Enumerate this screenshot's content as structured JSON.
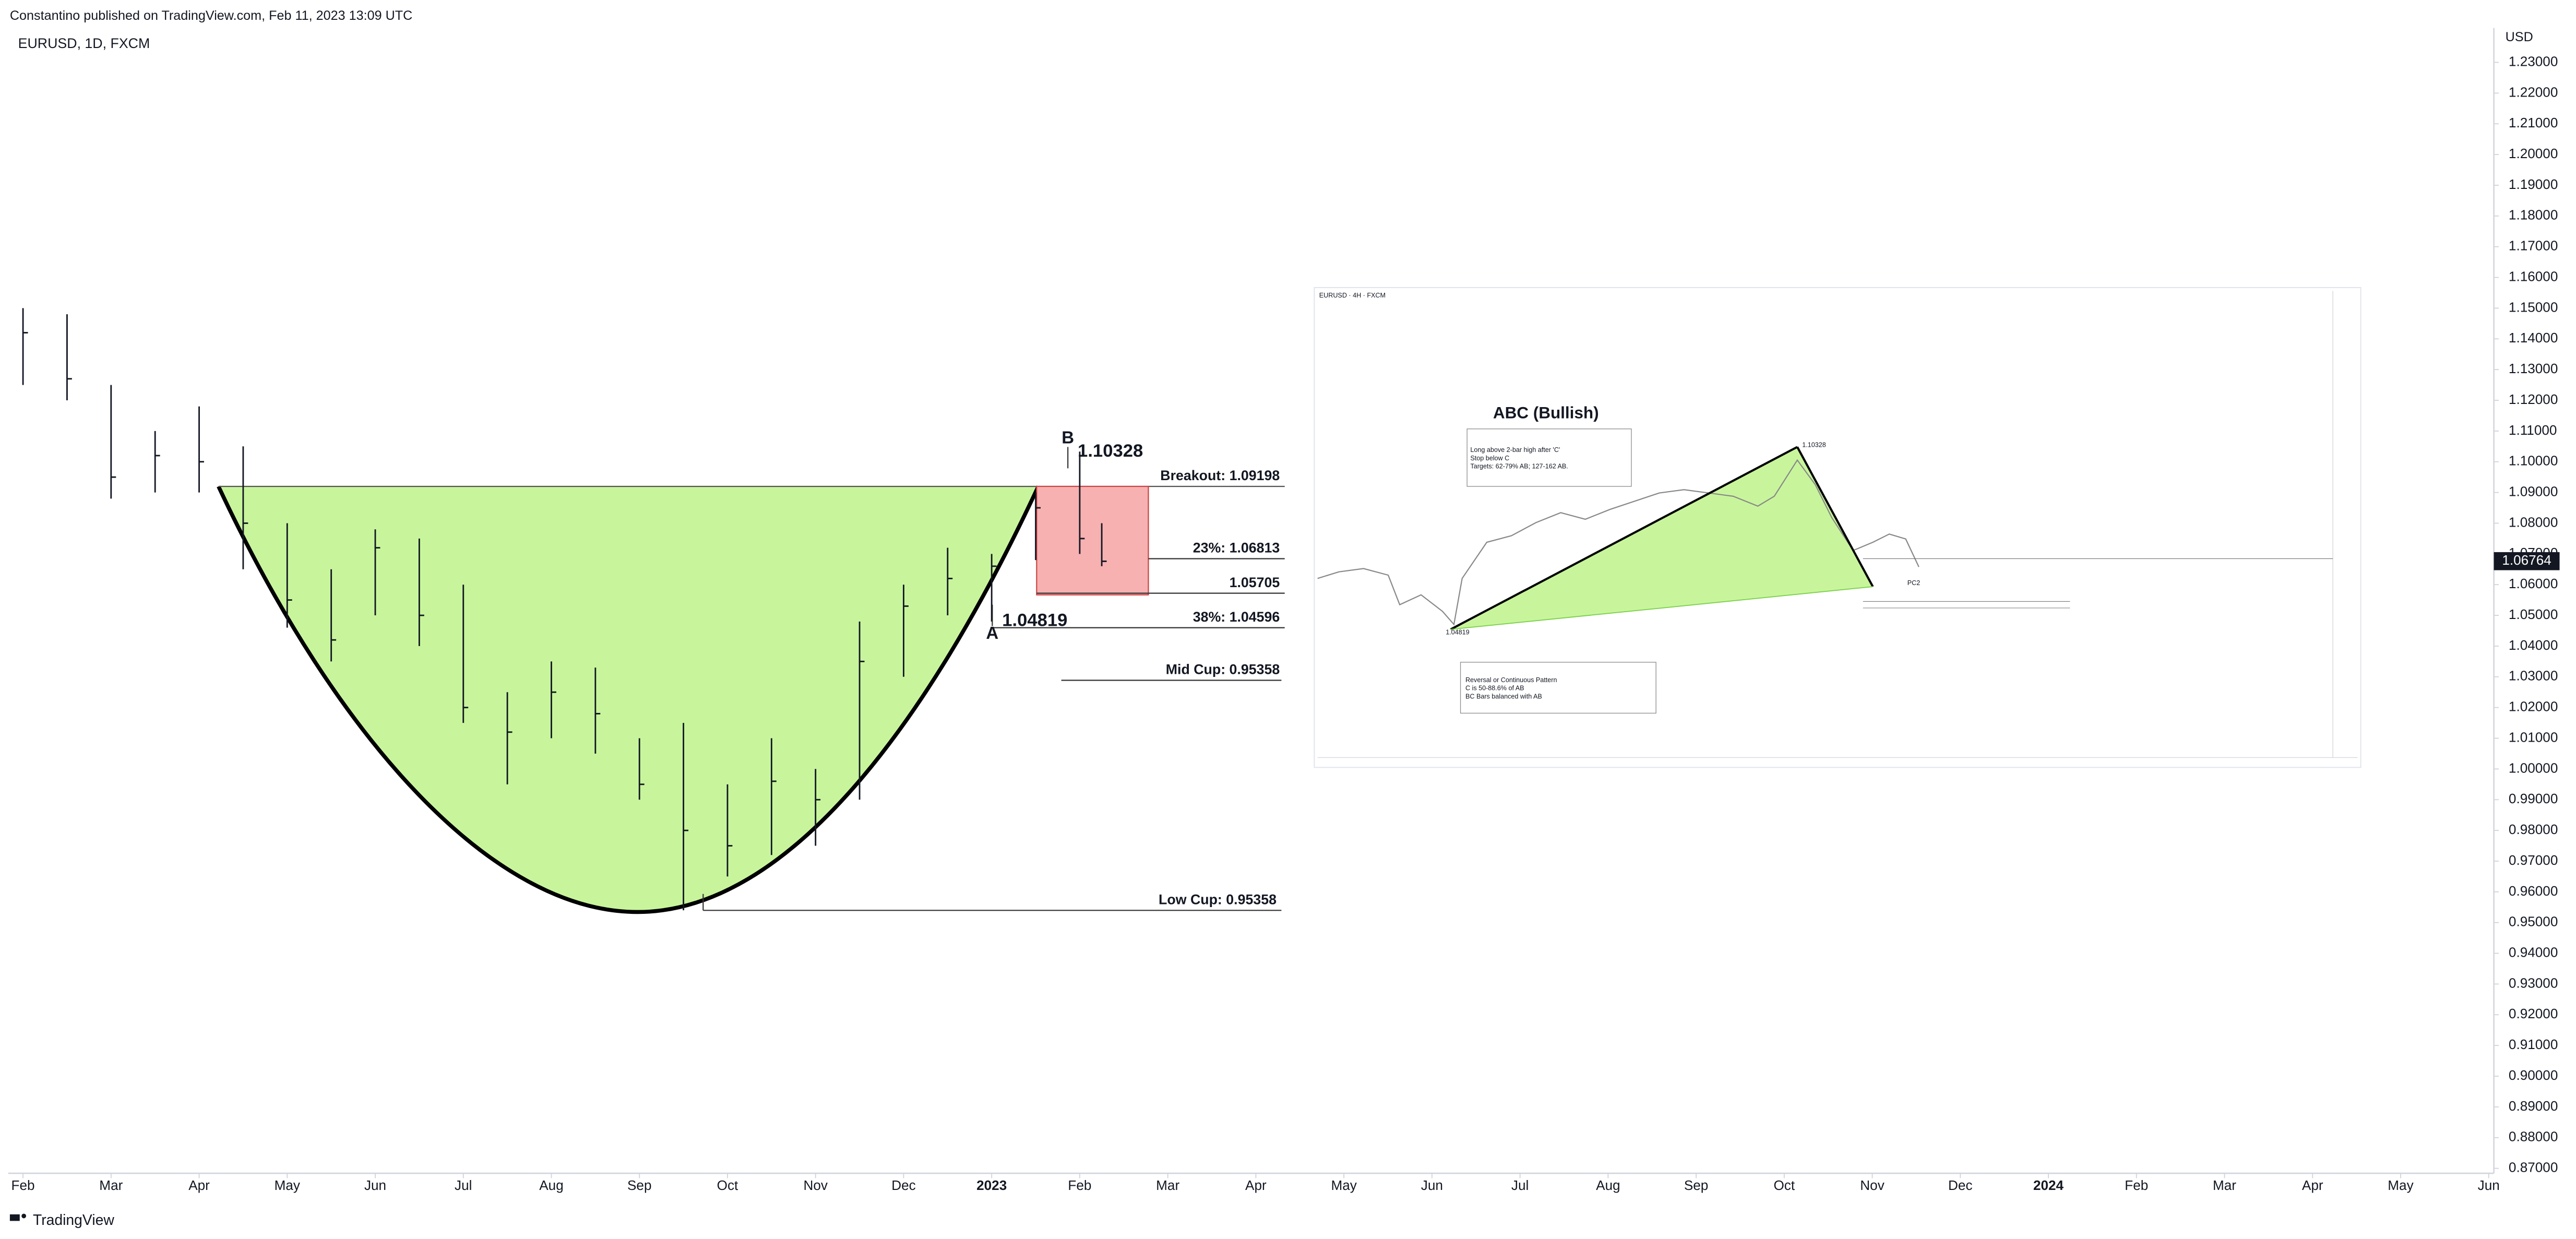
{
  "header": {
    "published": "Constantino published on TradingView.com, Feb 11, 2023 13:09 UTC",
    "footer": "TradingView"
  },
  "chart_data": {
    "type": "ohlc",
    "title": "EURUSD, 1D, FXCM",
    "y_axis_label": "USD",
    "xlim": [
      -0.168,
      28.04
    ],
    "xticks": [
      {
        "value": 0,
        "label": "Feb"
      },
      {
        "value": 1,
        "label": "Mar"
      },
      {
        "value": 2,
        "label": "Apr"
      },
      {
        "value": 3,
        "label": "May"
      },
      {
        "value": 4,
        "label": "Jun"
      },
      {
        "value": 5,
        "label": "Jul"
      },
      {
        "value": 6,
        "label": "Aug"
      },
      {
        "value": 7,
        "label": "Sep"
      },
      {
        "value": 8,
        "label": "Oct"
      },
      {
        "value": 9,
        "label": "Nov"
      },
      {
        "value": 10,
        "label": "Dec"
      },
      {
        "value": 11,
        "label": "2023"
      },
      {
        "value": 12,
        "label": "Feb"
      },
      {
        "value": 13,
        "label": "Mar"
      },
      {
        "value": 14,
        "label": "Apr"
      },
      {
        "value": 15,
        "label": "May"
      },
      {
        "value": 16,
        "label": "Jun"
      },
      {
        "value": 17,
        "label": "Jul"
      },
      {
        "value": 18,
        "label": "Aug"
      },
      {
        "value": 19,
        "label": "Sep"
      },
      {
        "value": 20,
        "label": "Oct"
      },
      {
        "value": 21,
        "label": "Nov"
      },
      {
        "value": 22,
        "label": "Dec"
      },
      {
        "value": 23,
        "label": "2024"
      },
      {
        "value": 24,
        "label": "Feb"
      },
      {
        "value": 25,
        "label": "Mar"
      },
      {
        "value": 26,
        "label": "Apr"
      },
      {
        "value": 27,
        "label": "May"
      },
      {
        "value": 28,
        "label": "Jun"
      }
    ],
    "ylim": [
      0.8684,
      1.2396
    ],
    "yticks": [
      {
        "value": 0.87,
        "label": "0.87000"
      },
      {
        "value": 0.88,
        "label": "0.88000"
      },
      {
        "value": 0.89,
        "label": "0.89000"
      },
      {
        "value": 0.9,
        "label": "0.90000"
      },
      {
        "value": 0.91,
        "label": "0.91000"
      },
      {
        "value": 0.92,
        "label": "0.92000"
      },
      {
        "value": 0.93,
        "label": "0.93000"
      },
      {
        "value": 0.94,
        "label": "0.94000"
      },
      {
        "value": 0.95,
        "label": "0.95000"
      },
      {
        "value": 0.96,
        "label": "0.96000"
      },
      {
        "value": 0.97,
        "label": "0.97000"
      },
      {
        "value": 0.98,
        "label": "0.98000"
      },
      {
        "value": 0.99,
        "label": "0.99000"
      },
      {
        "value": 1.0,
        "label": "1.00000"
      },
      {
        "value": 1.01,
        "label": "1.01000"
      },
      {
        "value": 1.02,
        "label": "1.02000"
      },
      {
        "value": 1.03,
        "label": "1.03000"
      },
      {
        "value": 1.04,
        "label": "1.04000"
      },
      {
        "value": 1.05,
        "label": "1.05000"
      },
      {
        "value": 1.06,
        "label": "1.06000"
      },
      {
        "value": 1.07,
        "label": "1.07000"
      },
      {
        "value": 1.08,
        "label": "1.08000"
      },
      {
        "value": 1.09,
        "label": "1.09000"
      },
      {
        "value": 1.1,
        "label": "1.10000"
      },
      {
        "value": 1.11,
        "label": "1.11000"
      },
      {
        "value": 1.12,
        "label": "1.12000"
      },
      {
        "value": 1.13,
        "label": "1.13000"
      },
      {
        "value": 1.14,
        "label": "1.14000"
      },
      {
        "value": 1.15,
        "label": "1.15000"
      },
      {
        "value": 1.16,
        "label": "1.16000"
      },
      {
        "value": 1.17,
        "label": "1.17000"
      },
      {
        "value": 1.18,
        "label": "1.18000"
      },
      {
        "value": 1.19,
        "label": "1.19000"
      },
      {
        "value": 1.2,
        "label": "1.20000"
      },
      {
        "value": 1.21,
        "label": "1.21000"
      },
      {
        "value": 1.22,
        "label": "1.22000"
      },
      {
        "value": 1.23,
        "label": "1.23000"
      }
    ],
    "series": [
      {
        "color": "#131722",
        "x": [
          0,
          0.5,
          1,
          1.5,
          2,
          2.5,
          3,
          3.5,
          4,
          4.5,
          5,
          5.5,
          6,
          6.5,
          7,
          7.5,
          8,
          8.5,
          9,
          9.5,
          10,
          10.5,
          11,
          11.5,
          12,
          12.25
        ],
        "high": [
          1.15,
          1.148,
          1.125,
          1.11,
          1.118,
          1.105,
          1.08,
          1.065,
          1.078,
          1.075,
          1.06,
          1.025,
          1.035,
          1.033,
          1.01,
          1.015,
          0.995,
          1.01,
          1.0,
          1.048,
          1.06,
          1.072,
          1.07,
          1.09,
          1.1033,
          1.08
        ],
        "low": [
          1.125,
          1.12,
          1.088,
          1.09,
          1.09,
          1.065,
          1.046,
          1.035,
          1.05,
          1.04,
          1.015,
          0.995,
          1.01,
          1.005,
          0.99,
          0.954,
          0.965,
          0.972,
          0.975,
          0.99,
          1.03,
          1.05,
          1.048,
          1.068,
          1.07,
          1.066
        ],
        "values": [
          1.142,
          1.127,
          1.095,
          1.102,
          1.1,
          1.08,
          1.055,
          1.042,
          1.072,
          1.05,
          1.02,
          1.012,
          1.025,
          1.018,
          0.995,
          0.98,
          0.975,
          0.996,
          0.99,
          1.035,
          1.053,
          1.062,
          1.066,
          1.085,
          1.075,
          1.0676
        ]
      }
    ],
    "last_price": {
      "value": 1.06764,
      "label": "1.06764"
    },
    "annotations": [
      "Breakout: 1.09198",
      "23%: 1.06813",
      "1.05705",
      "38%: 1.04596",
      "Mid Cup: 0.95358",
      "Low Cup: 0.95358",
      "B",
      "1.10328",
      "A",
      "1.04819"
    ]
  },
  "inset": {
    "title": "EURUSD · 4H · FXCM",
    "heading": "ABC (Bullish)",
    "rules": [
      "Long above 2-bar high after 'C'",
      "Stop below C",
      "Targets: 62-79% AB; 127-162 AB."
    ],
    "notes": [
      "Reversal or Continuous Pattern",
      "C is 50-88.6% of AB",
      "BC Bars balanced with AB"
    ],
    "labels": [
      "1.10328",
      "1.04819",
      "PC2"
    ]
  }
}
